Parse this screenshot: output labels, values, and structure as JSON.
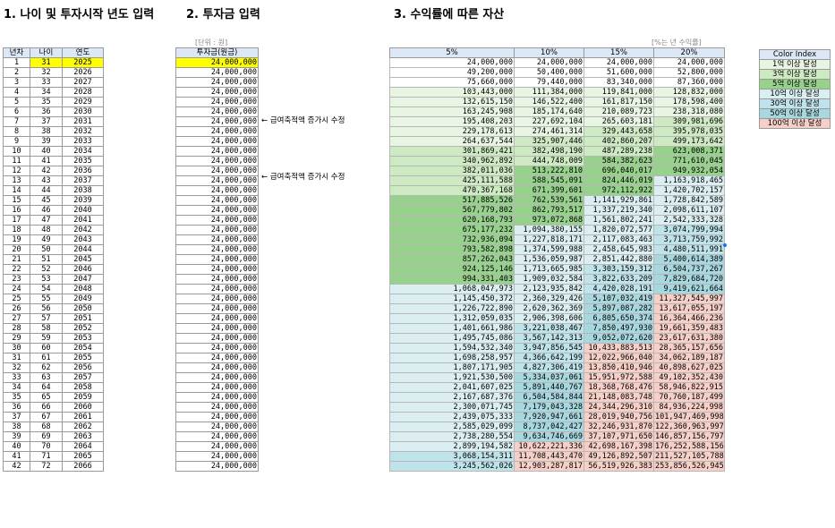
{
  "titles": {
    "section1": "1. 나이 및 투자시작 년도 입력",
    "section2": "2. 투자금 입력",
    "section3": "3. 수익률에 따른 자산"
  },
  "notes": {
    "unit": "[단위 : 원]",
    "rate": "[%는 년 수익률]",
    "annotation_a": "← 급여축적액 증가시 수정",
    "annotation_b": "← 급여축적액 증가시 수정"
  },
  "headers": {
    "year_no": "년차",
    "age": "나이",
    "year": "연도",
    "invest": "투자금(원금)",
    "rates": [
      "5%",
      "10%",
      "15%",
      "20%"
    ]
  },
  "colors": {
    "input_yellow": "#ffff00",
    "tier_100m": "#e8f5e3",
    "tier_300m": "#cdeac3",
    "tier_500m": "#96d28c",
    "tier_1b": "#dbeff2",
    "tier_3b": "#bfe3ea",
    "tier_5b": "#a7d8e0",
    "tier_10b": "#f6cfc7"
  },
  "legend": {
    "title": "Color Index",
    "items": [
      "1억 이상 달성",
      "3억 이상 달성",
      "5억 이상 달성",
      "10억 이상 달성",
      "30억 이상 달성",
      "50억 이상 달성",
      "100억 이상 달성"
    ]
  },
  "rows": [
    {
      "n": "1",
      "age": "31",
      "year": "2025",
      "invest": "24,000,000",
      "r5": "24,000,000",
      "r10": "24,000,000",
      "r15": "24,000,000",
      "r20": "24,000,000"
    },
    {
      "n": "2",
      "age": "32",
      "year": "2026",
      "invest": "24,000,000",
      "r5": "49,200,000",
      "r10": "50,400,000",
      "r15": "51,600,000",
      "r20": "52,800,000"
    },
    {
      "n": "3",
      "age": "33",
      "year": "2027",
      "invest": "24,000,000",
      "r5": "75,660,000",
      "r10": "79,440,000",
      "r15": "83,340,000",
      "r20": "87,360,000"
    },
    {
      "n": "4",
      "age": "34",
      "year": "2028",
      "invest": "24,000,000",
      "r5": "103,443,000",
      "r10": "111,384,000",
      "r15": "119,841,000",
      "r20": "128,832,000"
    },
    {
      "n": "5",
      "age": "35",
      "year": "2029",
      "invest": "24,000,000",
      "r5": "132,615,150",
      "r10": "146,522,400",
      "r15": "161,817,150",
      "r20": "178,598,400"
    },
    {
      "n": "6",
      "age": "36",
      "year": "2030",
      "invest": "24,000,000",
      "r5": "163,245,908",
      "r10": "185,174,640",
      "r15": "210,089,723",
      "r20": "238,318,080"
    },
    {
      "n": "7",
      "age": "37",
      "year": "2031",
      "invest": "24,000,000",
      "r5": "195,408,203",
      "r10": "227,692,104",
      "r15": "265,603,181",
      "r20": "309,981,696"
    },
    {
      "n": "8",
      "age": "38",
      "year": "2032",
      "invest": "24,000,000",
      "r5": "229,178,613",
      "r10": "274,461,314",
      "r15": "329,443,658",
      "r20": "395,978,035"
    },
    {
      "n": "9",
      "age": "39",
      "year": "2033",
      "invest": "24,000,000",
      "r5": "264,637,544",
      "r10": "325,907,446",
      "r15": "402,860,207",
      "r20": "499,173,642"
    },
    {
      "n": "10",
      "age": "40",
      "year": "2034",
      "invest": "24,000,000",
      "r5": "301,869,421",
      "r10": "382,498,190",
      "r15": "487,289,238",
      "r20": "623,008,371"
    },
    {
      "n": "11",
      "age": "41",
      "year": "2035",
      "invest": "24,000,000",
      "r5": "340,962,892",
      "r10": "444,748,009",
      "r15": "584,382,623",
      "r20": "771,610,045"
    },
    {
      "n": "12",
      "age": "42",
      "year": "2036",
      "invest": "24,000,000",
      "r5": "382,011,036",
      "r10": "513,222,810",
      "r15": "696,040,017",
      "r20": "949,932,054"
    },
    {
      "n": "13",
      "age": "43",
      "year": "2037",
      "invest": "24,000,000",
      "r5": "425,111,588",
      "r10": "588,545,091",
      "r15": "824,446,019",
      "r20": "1,163,918,465"
    },
    {
      "n": "14",
      "age": "44",
      "year": "2038",
      "invest": "24,000,000",
      "r5": "470,367,168",
      "r10": "671,399,601",
      "r15": "972,112,922",
      "r20": "1,420,702,157"
    },
    {
      "n": "15",
      "age": "45",
      "year": "2039",
      "invest": "24,000,000",
      "r5": "517,885,526",
      "r10": "762,539,561",
      "r15": "1,141,929,861",
      "r20": "1,728,842,589"
    },
    {
      "n": "16",
      "age": "46",
      "year": "2040",
      "invest": "24,000,000",
      "r5": "567,779,802",
      "r10": "862,793,517",
      "r15": "1,337,219,340",
      "r20": "2,098,611,107"
    },
    {
      "n": "17",
      "age": "47",
      "year": "2041",
      "invest": "24,000,000",
      "r5": "620,168,793",
      "r10": "973,072,868",
      "r15": "1,561,802,241",
      "r20": "2,542,333,328"
    },
    {
      "n": "18",
      "age": "48",
      "year": "2042",
      "invest": "24,000,000",
      "r5": "675,177,232",
      "r10": "1,094,380,155",
      "r15": "1,820,072,577",
      "r20": "3,074,799,994"
    },
    {
      "n": "19",
      "age": "49",
      "year": "2043",
      "invest": "24,000,000",
      "r5": "732,936,094",
      "r10": "1,227,818,171",
      "r15": "2,117,083,463",
      "r20": "3,713,759,992"
    },
    {
      "n": "20",
      "age": "50",
      "year": "2044",
      "invest": "24,000,000",
      "r5": "793,582,898",
      "r10": "1,374,599,988",
      "r15": "2,458,645,983",
      "r20": "4,480,511,991"
    },
    {
      "n": "21",
      "age": "51",
      "year": "2045",
      "invest": "24,000,000",
      "r5": "857,262,043",
      "r10": "1,536,059,987",
      "r15": "2,851,442,880",
      "r20": "5,400,614,389"
    },
    {
      "n": "22",
      "age": "52",
      "year": "2046",
      "invest": "24,000,000",
      "r5": "924,125,146",
      "r10": "1,713,665,985",
      "r15": "3,303,159,312",
      "r20": "6,504,737,267"
    },
    {
      "n": "23",
      "age": "53",
      "year": "2047",
      "invest": "24,000,000",
      "r5": "994,331,403",
      "r10": "1,909,032,584",
      "r15": "3,822,633,209",
      "r20": "7,829,684,720"
    },
    {
      "n": "24",
      "age": "54",
      "year": "2048",
      "invest": "24,000,000",
      "r5": "1,068,047,973",
      "r10": "2,123,935,842",
      "r15": "4,420,028,191",
      "r20": "9,419,621,664"
    },
    {
      "n": "25",
      "age": "55",
      "year": "2049",
      "invest": "24,000,000",
      "r5": "1,145,450,372",
      "r10": "2,360,329,426",
      "r15": "5,107,032,419",
      "r20": "11,327,545,997"
    },
    {
      "n": "26",
      "age": "56",
      "year": "2050",
      "invest": "24,000,000",
      "r5": "1,226,722,890",
      "r10": "2,620,362,369",
      "r15": "5,897,087,282",
      "r20": "13,617,055,197"
    },
    {
      "n": "27",
      "age": "57",
      "year": "2051",
      "invest": "24,000,000",
      "r5": "1,312,059,035",
      "r10": "2,906,398,606",
      "r15": "6,805,650,374",
      "r20": "16,364,466,236"
    },
    {
      "n": "28",
      "age": "58",
      "year": "2052",
      "invest": "24,000,000",
      "r5": "1,401,661,986",
      "r10": "3,221,038,467",
      "r15": "7,850,497,930",
      "r20": "19,661,359,483"
    },
    {
      "n": "29",
      "age": "59",
      "year": "2053",
      "invest": "24,000,000",
      "r5": "1,495,745,086",
      "r10": "3,567,142,313",
      "r15": "9,052,072,620",
      "r20": "23,617,631,380"
    },
    {
      "n": "30",
      "age": "60",
      "year": "2054",
      "invest": "24,000,000",
      "r5": "1,594,532,340",
      "r10": "3,947,856,545",
      "r15": "10,433,883,513",
      "r20": "28,365,157,656"
    },
    {
      "n": "31",
      "age": "61",
      "year": "2055",
      "invest": "24,000,000",
      "r5": "1,698,258,957",
      "r10": "4,366,642,199",
      "r15": "12,022,966,040",
      "r20": "34,062,189,187"
    },
    {
      "n": "32",
      "age": "62",
      "year": "2056",
      "invest": "24,000,000",
      "r5": "1,807,171,905",
      "r10": "4,827,306,419",
      "r15": "13,850,410,946",
      "r20": "40,898,627,025"
    },
    {
      "n": "33",
      "age": "63",
      "year": "2057",
      "invest": "24,000,000",
      "r5": "1,921,530,500",
      "r10": "5,334,037,061",
      "r15": "15,951,972,588",
      "r20": "49,102,352,430"
    },
    {
      "n": "34",
      "age": "64",
      "year": "2058",
      "invest": "24,000,000",
      "r5": "2,041,607,025",
      "r10": "5,891,440,767",
      "r15": "18,368,768,476",
      "r20": "58,946,822,915"
    },
    {
      "n": "35",
      "age": "65",
      "year": "2059",
      "invest": "24,000,000",
      "r5": "2,167,687,376",
      "r10": "6,504,584,844",
      "r15": "21,148,083,748",
      "r20": "70,760,187,499"
    },
    {
      "n": "36",
      "age": "66",
      "year": "2060",
      "invest": "24,000,000",
      "r5": "2,300,071,745",
      "r10": "7,179,043,328",
      "r15": "24,344,296,310",
      "r20": "84,936,224,998"
    },
    {
      "n": "37",
      "age": "67",
      "year": "2061",
      "invest": "24,000,000",
      "r5": "2,439,075,333",
      "r10": "7,920,947,661",
      "r15": "28,019,940,756",
      "r20": "101,947,469,998"
    },
    {
      "n": "38",
      "age": "68",
      "year": "2062",
      "invest": "24,000,000",
      "r5": "2,585,029,099",
      "r10": "8,737,042,427",
      "r15": "32,246,931,870",
      "r20": "122,360,963,997"
    },
    {
      "n": "39",
      "age": "69",
      "year": "2063",
      "invest": "24,000,000",
      "r5": "2,738,280,554",
      "r10": "9,634,746,669",
      "r15": "37,107,971,650",
      "r20": "146,857,156,797"
    },
    {
      "n": "40",
      "age": "70",
      "year": "2064",
      "invest": "24,000,000",
      "r5": "2,899,194,582",
      "r10": "10,622,221,336",
      "r15": "42,698,167,398",
      "r20": "176,252,588,156"
    },
    {
      "n": "41",
      "age": "71",
      "year": "2065",
      "invest": "24,000,000",
      "r5": "3,068,154,311",
      "r10": "11,708,443,470",
      "r15": "49,126,892,507",
      "r20": "211,527,105,788"
    },
    {
      "n": "42",
      "age": "72",
      "year": "2066",
      "invest": "24,000,000",
      "r5": "3,245,562,026",
      "r10": "12,903,287,817",
      "r15": "56,519,926,383",
      "r20": "253,856,526,945"
    }
  ]
}
